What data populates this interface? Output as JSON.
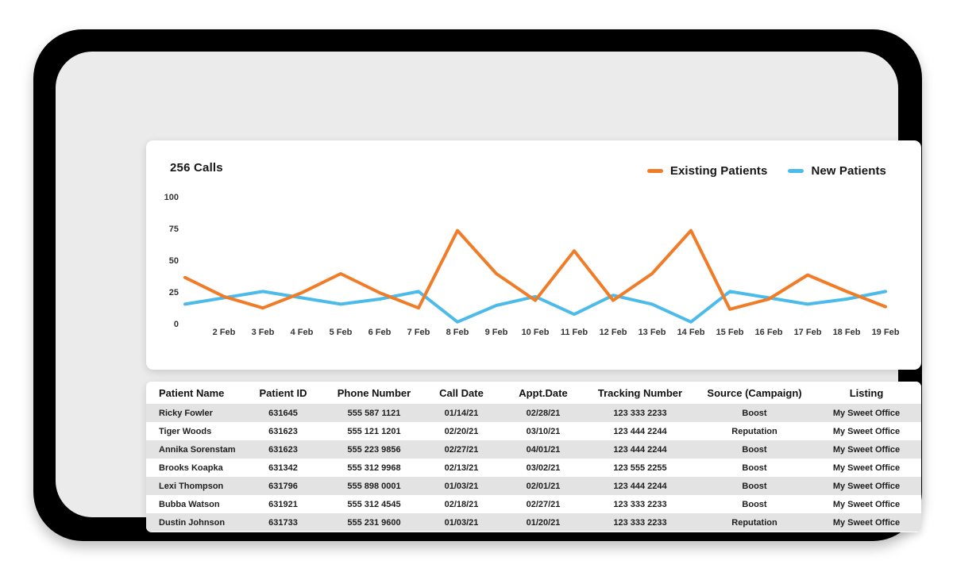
{
  "chart_data": {
    "type": "line",
    "title": "256 Calls",
    "xlabel": "",
    "ylabel": "",
    "ylim": [
      0,
      100
    ],
    "y_ticks": [
      100,
      75,
      50,
      25,
      0
    ],
    "grid": false,
    "legend_position": "top-right",
    "x_tick_labels": [
      "2 Feb",
      "3 Feb",
      "4 Feb",
      "5 Feb",
      "6 Feb",
      "7 Feb",
      "8 Feb",
      "9 Feb",
      "10 Feb",
      "11 Feb",
      "12 Feb",
      "13 Feb",
      "14 Feb",
      "15 Feb",
      "16 Feb",
      "17 Feb",
      "18 Feb",
      "19 Feb"
    ],
    "note_first_point_unlabeled": true,
    "series": [
      {
        "name": "Existing Patients",
        "color": "#F07C28",
        "values": [
          37,
          22,
          13,
          25,
          40,
          25,
          13,
          74,
          40,
          19,
          58,
          19,
          40,
          74,
          12,
          20,
          39,
          26,
          14
        ]
      },
      {
        "name": "New Patients",
        "color": "#4DBBE9",
        "values": [
          16,
          21,
          26,
          21,
          16,
          20,
          26,
          2,
          15,
          22,
          8,
          23,
          16,
          2,
          26,
          21,
          16,
          20,
          26
        ]
      }
    ]
  },
  "table": {
    "headers": [
      "Patient Name",
      "Patient ID",
      "Phone Number",
      "Call Date",
      "Appt.Date",
      "Tracking Number",
      "Source (Campaign)",
      "Listing"
    ],
    "rows": [
      [
        "Ricky Fowler",
        "631645",
        "555 587 1121",
        "01/14/21",
        "02/28/21",
        "123 333 2233",
        "Boost",
        "My Sweet Office"
      ],
      [
        "Tiger Woods",
        "631623",
        "555 121 1201",
        "02/20/21",
        "03/10/21",
        "123 444 2244",
        "Reputation",
        "My Sweet Office"
      ],
      [
        "Annika Sorenstam",
        "631623",
        "555 223 9856",
        "02/27/21",
        "04/01/21",
        "123 444 2244",
        "Boost",
        "My Sweet Office"
      ],
      [
        "Brooks Koapka",
        "631342",
        "555 312 9968",
        "02/13/21",
        "03/02/21",
        "123 555 2255",
        "Boost",
        "My Sweet Office"
      ],
      [
        "Lexi Thompson",
        "631796",
        "555 898 0001",
        "01/03/21",
        "02/01/21",
        "123 444 2244",
        "Boost",
        "My Sweet Office"
      ],
      [
        "Bubba Watson",
        "631921",
        "555 312 4545",
        "02/18/21",
        "02/27/21",
        "123 333 2233",
        "Boost",
        "My Sweet Office"
      ],
      [
        "Dustin Johnson",
        "631733",
        "555 231 9600",
        "01/03/21",
        "01/20/21",
        "123 333 2233",
        "Reputation",
        "My Sweet Office"
      ]
    ]
  }
}
